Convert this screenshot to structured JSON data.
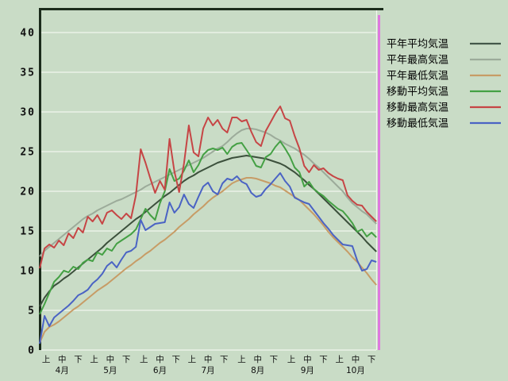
{
  "page": {
    "background_color": "#c9dcc6",
    "text_color": "#101010",
    "plot_border_color": "#1b2b1b",
    "gridline_color": "#f2f6ee",
    "marker_line_color": "#de78de",
    "right_boundary_color": "#f2f6ee"
  },
  "legend": {
    "position": "right",
    "items": [
      {
        "label": "平年平均気温",
        "color": "#44584a"
      },
      {
        "label": "平年最高気温",
        "color": "#9cab9a"
      },
      {
        "label": "平年最低気温",
        "color": "#c79c66"
      },
      {
        "label": "移動平均気温",
        "color": "#44a044"
      },
      {
        "label": "移動最高気温",
        "color": "#c64545"
      },
      {
        "label": "移動最低気温",
        "color": "#4a63c4"
      }
    ]
  },
  "chart_data": {
    "type": "line",
    "title": "",
    "xlabel": "",
    "ylabel": "",
    "ylim": [
      0,
      43
    ],
    "y_axis": {
      "min": 0,
      "max": 40,
      "tick_interval": 5,
      "tick_labels": [
        "40",
        "35",
        "30",
        "25",
        "20",
        "15",
        "10",
        "5",
        "0"
      ]
    },
    "x_axis": {
      "months": [
        "4月",
        "5月",
        "6月",
        "7月",
        "8月",
        "9月",
        "10月"
      ],
      "month_start_day": [
        0,
        30,
        61,
        91,
        122,
        153,
        183
      ],
      "period_labels": [
        "上",
        "中",
        "下"
      ],
      "period_tick_days": [
        4,
        14,
        24
      ]
    },
    "grid": true,
    "legend_position": "right",
    "marker_line": {
      "meaning": "latest-data date marker",
      "day": 210,
      "color": "#de78de"
    },
    "x_unit": "days since April 1",
    "day_step": 3,
    "series": [
      {
        "name": "平年平均気温",
        "color": "#3c503c",
        "width": 2,
        "values": [
          5.5,
          6.6,
          7.4,
          8.1,
          8.5,
          9.0,
          9.4,
          9.9,
          10.4,
          10.9,
          11.4,
          11.9,
          12.4,
          12.9,
          13.5,
          14.0,
          14.5,
          15.0,
          15.5,
          16.0,
          16.5,
          16.9,
          17.4,
          17.9,
          18.4,
          18.9,
          19.4,
          19.8,
          20.3,
          20.8,
          21.3,
          21.7,
          22.0,
          22.4,
          22.7,
          23.0,
          23.3,
          23.6,
          23.8,
          24.0,
          24.2,
          24.3,
          24.4,
          24.5,
          24.4,
          24.3,
          24.2,
          24.1,
          23.9,
          23.7,
          23.5,
          23.2,
          22.8,
          22.4,
          21.9,
          21.4,
          20.8,
          20.3,
          19.7,
          19.1,
          18.5,
          17.9,
          17.3,
          16.7,
          16.1,
          15.5,
          14.9,
          14.3,
          13.6,
          13.0,
          12.4
        ]
      },
      {
        "name": "平年最高気温",
        "color": "#9cab9a",
        "width": 2,
        "values": [
          11.8,
          12.5,
          13.0,
          13.5,
          14.0,
          14.5,
          15.0,
          15.5,
          16.0,
          16.5,
          16.9,
          17.2,
          17.6,
          17.9,
          18.2,
          18.5,
          18.8,
          19.0,
          19.3,
          19.6,
          19.9,
          20.2,
          20.6,
          20.9,
          21.2,
          21.5,
          21.8,
          22.1,
          22.4,
          22.7,
          23.0,
          23.3,
          23.6,
          23.9,
          24.2,
          24.6,
          25.0,
          25.4,
          25.7,
          26.2,
          26.8,
          27.3,
          27.7,
          27.9,
          27.9,
          27.8,
          27.6,
          27.4,
          27.1,
          26.7,
          26.4,
          26.0,
          25.7,
          25.4,
          25.0,
          24.6,
          24.1,
          23.5,
          23.0,
          22.4,
          21.8,
          21.2,
          20.6,
          20.0,
          19.2,
          18.5,
          18.0,
          17.5,
          17.1,
          16.5,
          15.9
        ]
      },
      {
        "name": "平年最低気温",
        "color": "#c79c66",
        "width": 2,
        "values": [
          0.9,
          2.3,
          2.9,
          3.2,
          3.6,
          4.1,
          4.6,
          5.1,
          5.5,
          6.0,
          6.5,
          7.0,
          7.5,
          7.9,
          8.3,
          8.8,
          9.3,
          9.8,
          10.3,
          10.7,
          11.2,
          11.6,
          12.1,
          12.5,
          13.0,
          13.5,
          13.9,
          14.4,
          14.9,
          15.5,
          16.0,
          16.5,
          17.1,
          17.6,
          18.1,
          18.7,
          19.2,
          19.6,
          20.0,
          20.5,
          21.0,
          21.3,
          21.5,
          21.7,
          21.7,
          21.6,
          21.4,
          21.2,
          21.0,
          20.7,
          20.5,
          20.1,
          19.7,
          19.3,
          18.9,
          18.3,
          17.7,
          17.1,
          16.4,
          15.7,
          14.9,
          14.2,
          13.6,
          13.0,
          12.4,
          11.7,
          11.1,
          10.4,
          9.7,
          8.9,
          8.2
        ]
      },
      {
        "name": "移動平均気温",
        "color": "#44a044",
        "width": 2,
        "values": [
          4.5,
          5.8,
          7.2,
          8.6,
          9.2,
          10.0,
          9.8,
          10.5,
          10.2,
          11.0,
          11.4,
          11.2,
          12.3,
          12.0,
          12.8,
          12.5,
          13.4,
          13.8,
          14.2,
          14.6,
          15.2,
          16.5,
          17.8,
          17.0,
          16.4,
          18.5,
          20.0,
          22.8,
          21.3,
          21.6,
          22.6,
          23.9,
          22.4,
          23.3,
          24.6,
          25.2,
          25.4,
          25.2,
          25.5,
          24.7,
          25.6,
          26.0,
          26.1,
          25.2,
          24.3,
          23.2,
          23.0,
          24.3,
          24.7,
          25.6,
          26.3,
          25.4,
          24.4,
          23.0,
          22.4,
          20.6,
          21.2,
          20.3,
          19.8,
          19.4,
          18.8,
          18.3,
          17.8,
          17.5,
          16.8,
          16.0,
          14.9,
          15.2,
          14.3,
          14.8,
          14.2
        ]
      },
      {
        "name": "移動最低気温",
        "color": "#4a63c4",
        "width": 2,
        "values": [
          0.8,
          4.3,
          3.0,
          4.1,
          4.6,
          5.1,
          5.6,
          6.2,
          6.9,
          7.2,
          7.6,
          8.4,
          8.9,
          9.6,
          10.6,
          11.1,
          10.4,
          11.4,
          12.3,
          12.5,
          13.0,
          16.4,
          15.1,
          15.5,
          15.9,
          16.0,
          16.1,
          18.6,
          17.3,
          18.0,
          19.6,
          18.4,
          17.9,
          19.3,
          20.6,
          21.1,
          20.0,
          19.6,
          21.0,
          21.6,
          21.4,
          21.9,
          21.2,
          20.9,
          19.8,
          19.3,
          19.5,
          20.3,
          20.9,
          21.6,
          22.3,
          21.3,
          20.6,
          19.2,
          18.9,
          18.6,
          18.4,
          17.6,
          16.8,
          16.0,
          15.3,
          14.5,
          13.9,
          13.3,
          13.2,
          13.1,
          11.3,
          10.0,
          10.2,
          11.3,
          11.1
        ]
      },
      {
        "name": "移動最高気温",
        "color": "#c64545",
        "width": 2,
        "values": [
          10.3,
          12.8,
          13.3,
          12.9,
          13.8,
          13.2,
          14.7,
          14.1,
          15.4,
          14.8,
          16.8,
          16.2,
          17.0,
          15.9,
          17.3,
          17.6,
          17.0,
          16.5,
          17.2,
          16.6,
          19.5,
          25.3,
          23.6,
          21.6,
          19.8,
          21.3,
          20.2,
          26.6,
          22.5,
          19.9,
          23.5,
          28.3,
          24.9,
          24.4,
          27.9,
          29.3,
          28.3,
          29.0,
          27.9,
          27.4,
          29.3,
          29.3,
          28.8,
          29.0,
          27.5,
          26.2,
          25.7,
          27.6,
          28.7,
          29.8,
          30.7,
          29.2,
          28.9,
          27.0,
          25.4,
          23.2,
          22.4,
          23.3,
          22.7,
          22.9,
          22.3,
          21.9,
          21.6,
          21.4,
          19.5,
          18.8,
          18.3,
          18.2,
          17.4,
          16.8,
          16.2
        ]
      }
    ]
  }
}
